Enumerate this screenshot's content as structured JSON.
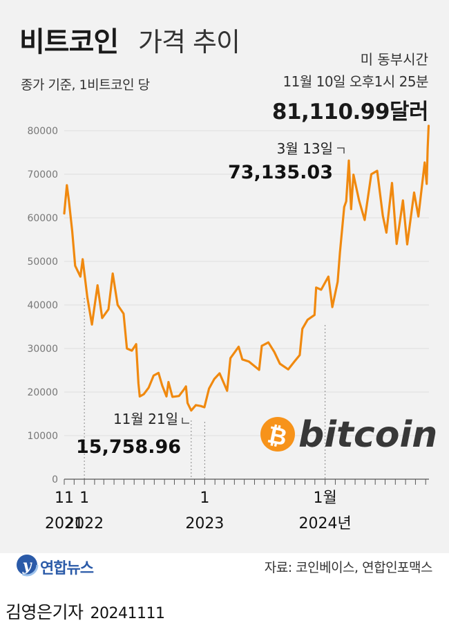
{
  "header": {
    "title_bold": "비트코인",
    "title_light": "가격 추이",
    "subtitle": "종가 기준, 1비트코인 당",
    "time_label": "미 동부시간",
    "datetime": "11월 10일 오후1시 25분",
    "latest_price": "81,110.99달러"
  },
  "annotations": {
    "high_date": "3월 13일",
    "high_value": "73,135.03",
    "low_date": "11월 21일",
    "low_value": "15,758.96"
  },
  "brand": {
    "bitcoin_wordmark": "bitcoin",
    "bitcoin_symbol": "₿"
  },
  "footer": {
    "logo": "연합뉴스",
    "source": "자료: 코인베이스, 연합인포맥스",
    "reporter": "김영은기자",
    "date": "20241111"
  },
  "colors": {
    "line": "#f0890f",
    "background": "#f2f2f2",
    "bitcoin_orange": "#f7931a",
    "logo_blue": "#2a5aa8"
  },
  "chart_data": {
    "type": "line",
    "title": "비트코인 가격 추이",
    "subtitle": "종가 기준, 1비트코인 당",
    "ylim": [
      0,
      85000
    ],
    "yticks": [
      0,
      10000,
      20000,
      30000,
      40000,
      50000,
      60000,
      70000,
      80000
    ],
    "xlim": [
      "2021-11-01",
      "2024-11-11"
    ],
    "xticks": [
      {
        "date": "2021-11-01",
        "label": "11",
        "year": "2021"
      },
      {
        "date": "2022-01-01",
        "label": "1",
        "year": "2022"
      },
      {
        "date": "2023-01-01",
        "label": "1",
        "year": "2023"
      },
      {
        "date": "2024-01-01",
        "label": "1월",
        "year": "2024년"
      }
    ],
    "grid": "horizontal",
    "series": [
      {
        "values": [
          {
            "x": "2021-11-01",
            "y": 61000
          },
          {
            "x": "2021-11-09",
            "y": 67500
          },
          {
            "x": "2021-11-15",
            "y": 64000
          },
          {
            "x": "2021-11-25",
            "y": 57000
          },
          {
            "x": "2021-12-04",
            "y": 49000
          },
          {
            "x": "2021-12-20",
            "y": 46500
          },
          {
            "x": "2021-12-27",
            "y": 50500
          },
          {
            "x": "2022-01-10",
            "y": 41800
          },
          {
            "x": "2022-01-24",
            "y": 35500
          },
          {
            "x": "2022-02-10",
            "y": 44500
          },
          {
            "x": "2022-02-24",
            "y": 37000
          },
          {
            "x": "2022-03-15",
            "y": 39000
          },
          {
            "x": "2022-03-28",
            "y": 47200
          },
          {
            "x": "2022-04-12",
            "y": 40000
          },
          {
            "x": "2022-04-30",
            "y": 38000
          },
          {
            "x": "2022-05-10",
            "y": 30000
          },
          {
            "x": "2022-05-25",
            "y": 29500
          },
          {
            "x": "2022-06-07",
            "y": 31000
          },
          {
            "x": "2022-06-14",
            "y": 22000
          },
          {
            "x": "2022-06-18",
            "y": 19000
          },
          {
            "x": "2022-06-30",
            "y": 19500
          },
          {
            "x": "2022-07-15",
            "y": 21000
          },
          {
            "x": "2022-07-30",
            "y": 23800
          },
          {
            "x": "2022-08-14",
            "y": 24400
          },
          {
            "x": "2022-08-25",
            "y": 21500
          },
          {
            "x": "2022-09-07",
            "y": 19000
          },
          {
            "x": "2022-09-13",
            "y": 22300
          },
          {
            "x": "2022-09-25",
            "y": 18900
          },
          {
            "x": "2022-10-15",
            "y": 19100
          },
          {
            "x": "2022-10-30",
            "y": 20600
          },
          {
            "x": "2022-11-05",
            "y": 21300
          },
          {
            "x": "2022-11-10",
            "y": 17500
          },
          {
            "x": "2022-11-21",
            "y": 15758.96
          },
          {
            "x": "2022-12-05",
            "y": 17000
          },
          {
            "x": "2022-12-20",
            "y": 16800
          },
          {
            "x": "2022-12-31",
            "y": 16500
          },
          {
            "x": "2023-01-14",
            "y": 20800
          },
          {
            "x": "2023-01-30",
            "y": 23000
          },
          {
            "x": "2023-02-15",
            "y": 24300
          },
          {
            "x": "2023-03-10",
            "y": 20300
          },
          {
            "x": "2023-03-20",
            "y": 27800
          },
          {
            "x": "2023-04-14",
            "y": 30400
          },
          {
            "x": "2023-04-25",
            "y": 27500
          },
          {
            "x": "2023-05-15",
            "y": 27000
          },
          {
            "x": "2023-06-15",
            "y": 25100
          },
          {
            "x": "2023-06-23",
            "y": 30600
          },
          {
            "x": "2023-07-13",
            "y": 31400
          },
          {
            "x": "2023-07-31",
            "y": 29200
          },
          {
            "x": "2023-08-17",
            "y": 26500
          },
          {
            "x": "2023-09-11",
            "y": 25200
          },
          {
            "x": "2023-09-30",
            "y": 27000
          },
          {
            "x": "2023-10-16",
            "y": 28500
          },
          {
            "x": "2023-10-24",
            "y": 34500
          },
          {
            "x": "2023-11-09",
            "y": 36600
          },
          {
            "x": "2023-11-30",
            "y": 37700
          },
          {
            "x": "2023-12-05",
            "y": 44000
          },
          {
            "x": "2023-12-20",
            "y": 43500
          },
          {
            "x": "2024-01-11",
            "y": 46500
          },
          {
            "x": "2024-01-23",
            "y": 39500
          },
          {
            "x": "2024-02-08",
            "y": 45300
          },
          {
            "x": "2024-02-15",
            "y": 52000
          },
          {
            "x": "2024-02-28",
            "y": 62500
          },
          {
            "x": "2024-03-05",
            "y": 63800
          },
          {
            "x": "2024-03-13",
            "y": 73135.03
          },
          {
            "x": "2024-03-20",
            "y": 62000
          },
          {
            "x": "2024-03-27",
            "y": 69900
          },
          {
            "x": "2024-04-13",
            "y": 64000
          },
          {
            "x": "2024-04-30",
            "y": 59500
          },
          {
            "x": "2024-05-20",
            "y": 70000
          },
          {
            "x": "2024-06-07",
            "y": 70800
          },
          {
            "x": "2024-06-24",
            "y": 60500
          },
          {
            "x": "2024-07-05",
            "y": 56600
          },
          {
            "x": "2024-07-22",
            "y": 68000
          },
          {
            "x": "2024-08-05",
            "y": 54000
          },
          {
            "x": "2024-08-24",
            "y": 64000
          },
          {
            "x": "2024-09-06",
            "y": 53900
          },
          {
            "x": "2024-09-27",
            "y": 65800
          },
          {
            "x": "2024-10-10",
            "y": 60300
          },
          {
            "x": "2024-10-29",
            "y": 72700
          },
          {
            "x": "2024-11-04",
            "y": 67800
          },
          {
            "x": "2024-11-07",
            "y": 75900
          },
          {
            "x": "2024-11-10",
            "y": 81110.99
          }
        ]
      }
    ]
  }
}
